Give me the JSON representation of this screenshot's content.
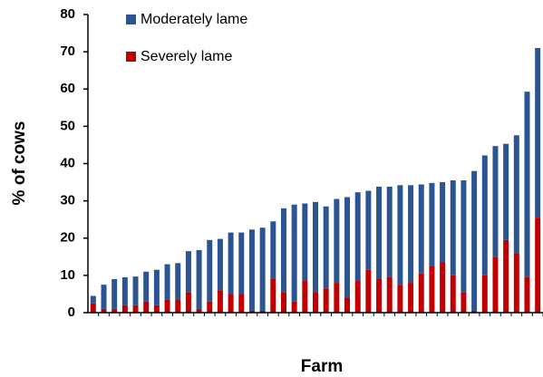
{
  "chart_data": {
    "type": "stacked-bar",
    "x_label": "Farm",
    "y_label": "% of cows",
    "categories": [
      null,
      null,
      null,
      null,
      null,
      null,
      null,
      null,
      null,
      null,
      null,
      null,
      null,
      null,
      null,
      null,
      null,
      null,
      null,
      null,
      null,
      null,
      null,
      null,
      null,
      null,
      null,
      null,
      null,
      null,
      null,
      null,
      null,
      null,
      null,
      null,
      null,
      null,
      null,
      null,
      null,
      null,
      null
    ],
    "series": [
      {
        "name": "Moderately lame",
        "color": "#2a5592",
        "values": [
          2,
          6.5,
          8,
          7.5,
          7.7,
          8,
          9.5,
          9.5,
          9.8,
          11,
          15.8,
          16.5,
          13.8,
          16.5,
          16.5,
          21.8,
          22.3,
          15.5,
          22.5,
          26,
          20.8,
          24.2,
          22,
          22.5,
          27,
          23.8,
          21.2,
          24.8,
          24.3,
          26.7,
          26.2,
          23.9,
          22.3,
          21.5,
          25.5,
          30,
          37.5,
          32.2,
          29.7,
          25.8,
          31.6,
          49.8,
          45.5
        ]
      },
      {
        "name": "Severely lame",
        "color": "#c00000",
        "values": [
          2.5,
          1,
          1,
          2,
          2,
          3,
          2,
          3.5,
          3.5,
          5.5,
          1,
          3,
          6,
          5,
          5,
          0.5,
          0.5,
          9,
          5.5,
          3,
          8.5,
          5.5,
          6.5,
          8,
          4,
          8.5,
          11.5,
          9,
          9.5,
          7.5,
          8,
          10.5,
          12.5,
          13.5,
          10,
          5.5,
          0.5,
          10,
          15,
          19.5,
          16,
          9.5,
          25.5
        ]
      }
    ],
    "ylim": [
      0,
      80
    ],
    "yticks": [
      0,
      10,
      20,
      30,
      40,
      50,
      60,
      70,
      80
    ],
    "grid": false,
    "legend": "top-left"
  }
}
